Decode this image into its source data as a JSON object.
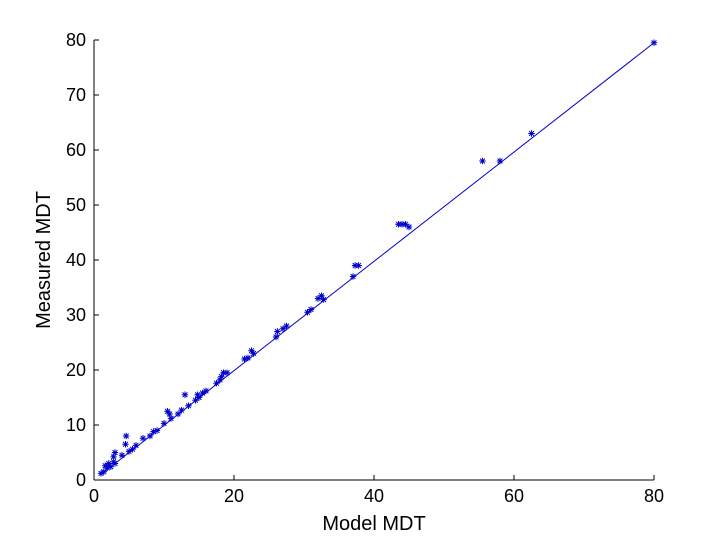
{
  "chart_data": {
    "type": "scatter",
    "title": "",
    "xlabel": "Model MDT",
    "ylabel": "Measured MDT",
    "xlim": [
      0,
      80
    ],
    "ylim": [
      0,
      80
    ],
    "xticks": [
      0,
      20,
      40,
      60,
      80
    ],
    "yticks": [
      0,
      10,
      20,
      30,
      40,
      50,
      60,
      70,
      80
    ],
    "grid": false,
    "legend": "none",
    "colors": {
      "series": "#0000cc",
      "axes": "#000000"
    },
    "series": [
      {
        "marker": "asterisk",
        "points": [
          [
            1.0,
            1.2
          ],
          [
            1.4,
            1.5
          ],
          [
            1.6,
            2.6
          ],
          [
            1.9,
            2.2
          ],
          [
            2.1,
            3.0
          ],
          [
            2.4,
            2.4
          ],
          [
            2.8,
            4.2
          ],
          [
            2.8,
            3.3
          ],
          [
            3.0,
            5.0
          ],
          [
            3.0,
            3.0
          ],
          [
            4.0,
            4.5
          ],
          [
            4.5,
            6.5
          ],
          [
            4.6,
            8.0
          ],
          [
            5.0,
            5.2
          ],
          [
            5.5,
            5.6
          ],
          [
            6.0,
            6.3
          ],
          [
            7.0,
            7.6
          ],
          [
            8.0,
            8.0
          ],
          [
            8.5,
            8.8
          ],
          [
            9.0,
            9.0
          ],
          [
            10.0,
            10.3
          ],
          [
            10.5,
            12.5
          ],
          [
            10.8,
            12.0
          ],
          [
            11.0,
            11.2
          ],
          [
            12.0,
            12.0
          ],
          [
            12.5,
            12.7
          ],
          [
            13.0,
            15.5
          ],
          [
            13.5,
            13.5
          ],
          [
            14.5,
            14.5
          ],
          [
            14.8,
            15.5
          ],
          [
            15.0,
            15.0
          ],
          [
            15.5,
            15.8
          ],
          [
            16.0,
            16.2
          ],
          [
            17.5,
            17.6
          ],
          [
            18.0,
            18.2
          ],
          [
            18.2,
            18.8
          ],
          [
            18.5,
            19.5
          ],
          [
            19.0,
            19.5
          ],
          [
            21.5,
            22.0
          ],
          [
            22.0,
            22.2
          ],
          [
            22.5,
            23.5
          ],
          [
            22.8,
            23.0
          ],
          [
            26.0,
            26.0
          ],
          [
            26.2,
            27.0
          ],
          [
            27.0,
            27.5
          ],
          [
            27.5,
            28.0
          ],
          [
            30.5,
            30.5
          ],
          [
            31.0,
            31.0
          ],
          [
            32.0,
            33.0
          ],
          [
            32.5,
            33.5
          ],
          [
            32.8,
            32.8
          ],
          [
            37.0,
            37.0
          ],
          [
            37.3,
            39.0
          ],
          [
            37.8,
            39.0
          ],
          [
            43.5,
            46.5
          ],
          [
            44.0,
            46.5
          ],
          [
            44.5,
            46.5
          ],
          [
            45.0,
            46.0
          ],
          [
            55.5,
            58.0
          ],
          [
            58.0,
            58.0
          ],
          [
            62.5,
            63.0
          ],
          [
            80.0,
            79.5
          ]
        ]
      },
      {
        "marker": "none",
        "line": "solid",
        "points": [
          [
            1.0,
            1.0
          ],
          [
            80.0,
            79.5
          ]
        ]
      }
    ]
  }
}
